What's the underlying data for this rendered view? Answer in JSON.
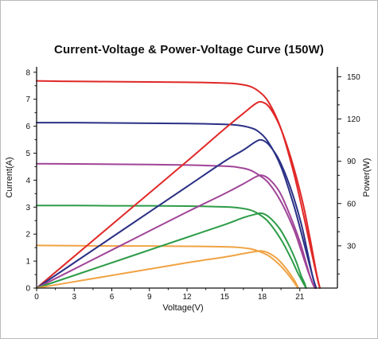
{
  "chart_data": {
    "type": "line",
    "title": "Current-Voltage & Power-Voltage Curve (150W)",
    "xlabel": "Voltage(V)",
    "ylabel": "Current(A)",
    "y2label": "Power(W)",
    "xlim": [
      0,
      24
    ],
    "ylim": [
      0,
      8.2
    ],
    "y2lim": [
      0,
      157
    ],
    "xticks": [
      0,
      3,
      6,
      9,
      12,
      15,
      18,
      21
    ],
    "yticks": [
      0,
      1,
      2,
      3,
      4,
      5,
      6,
      7,
      8
    ],
    "y2ticks": [
      30,
      60,
      90,
      120,
      150
    ],
    "grid": false,
    "colors": {
      "red": "#e02827",
      "navy": "#2b3185",
      "purple": "#a04497",
      "green": "#2d9c48",
      "orange": "#f0a344"
    },
    "iv_curves": [
      {
        "color": "red",
        "x": [
          0,
          3,
          6,
          9,
          12,
          15,
          16,
          17,
          17.7,
          18.5,
          19.5,
          20.5,
          21.3,
          21.9,
          22.4,
          22.6
        ],
        "y": [
          7.68,
          7.66,
          7.65,
          7.64,
          7.63,
          7.6,
          7.57,
          7.48,
          7.3,
          6.9,
          5.9,
          4.3,
          2.7,
          1.4,
          0.35,
          0
        ]
      },
      {
        "color": "navy",
        "x": [
          0,
          3,
          6,
          9,
          12,
          15,
          16,
          17,
          17.7,
          18.5,
          19.5,
          20.5,
          21.2,
          21.7,
          22.1,
          22.3
        ],
        "y": [
          6.13,
          6.13,
          6.12,
          6.11,
          6.1,
          6.07,
          6.04,
          5.95,
          5.8,
          5.4,
          4.5,
          3.1,
          1.9,
          1.0,
          0.3,
          0
        ]
      },
      {
        "color": "purple",
        "x": [
          0,
          3,
          6,
          9,
          12,
          15,
          16,
          17,
          17.7,
          18.5,
          19.5,
          20.5,
          21.1,
          21.6,
          22.0,
          22.2
        ],
        "y": [
          4.61,
          4.6,
          4.59,
          4.58,
          4.56,
          4.52,
          4.48,
          4.38,
          4.2,
          3.9,
          3.2,
          2.2,
          1.4,
          0.7,
          0.2,
          0
        ]
      },
      {
        "color": "green",
        "x": [
          0,
          3,
          6,
          9,
          12,
          15,
          16,
          17,
          17.7,
          18.5,
          19.5,
          20.3,
          20.8,
          21.2,
          21.5
        ],
        "y": [
          3.06,
          3.06,
          3.05,
          3.05,
          3.04,
          3.01,
          2.98,
          2.9,
          2.75,
          2.45,
          1.8,
          1.1,
          0.6,
          0.25,
          0
        ]
      },
      {
        "color": "orange",
        "x": [
          0,
          3,
          6,
          9,
          12,
          15,
          16,
          17,
          17.7,
          18.5,
          19.3,
          19.9,
          20.4,
          20.7,
          20.85
        ],
        "y": [
          1.58,
          1.57,
          1.56,
          1.56,
          1.55,
          1.53,
          1.51,
          1.46,
          1.37,
          1.2,
          0.9,
          0.6,
          0.3,
          0.1,
          0
        ]
      }
    ],
    "pv_curves": [
      {
        "color": "red",
        "x": [
          0,
          4,
          8,
          12,
          15,
          16.5,
          17.5,
          18,
          18.6,
          19.4,
          20.3,
          21.2,
          21.8,
          22.3,
          22.6
        ],
        "y": [
          0,
          30,
          60,
          90,
          113,
          124,
          131,
          132,
          128,
          115,
          92,
          62,
          36,
          12,
          0
        ]
      },
      {
        "color": "navy",
        "x": [
          0,
          4,
          8,
          12,
          15,
          16.5,
          17.5,
          18,
          18.6,
          19.4,
          20.3,
          21.1,
          21.6,
          22.0,
          22.3
        ],
        "y": [
          0,
          24,
          48,
          72,
          90,
          98,
          104,
          105,
          101,
          90,
          70,
          46,
          26,
          9,
          0
        ]
      },
      {
        "color": "purple",
        "x": [
          0,
          4,
          8,
          12,
          15,
          16.5,
          17.5,
          18,
          18.6,
          19.4,
          20.2,
          21.0,
          21.5,
          21.9,
          22.2
        ],
        "y": [
          0,
          18,
          36,
          54,
          67,
          74,
          79,
          80,
          77,
          68,
          52,
          33,
          18,
          6,
          0
        ]
      },
      {
        "color": "green",
        "x": [
          0,
          4,
          8,
          12,
          15,
          16.5,
          17.5,
          18,
          18.6,
          19.4,
          20.1,
          20.7,
          21.1,
          21.4,
          21.5
        ],
        "y": [
          0,
          12,
          24,
          36,
          45,
          50,
          52.5,
          53,
          50,
          42,
          31,
          19,
          9,
          3,
          0
        ]
      },
      {
        "color": "orange",
        "x": [
          0,
          4,
          8,
          12,
          15,
          16.5,
          17.5,
          18,
          18.6,
          19.3,
          19.9,
          20.3,
          20.6,
          20.8,
          20.85
        ],
        "y": [
          0,
          6,
          12,
          18,
          22,
          24.5,
          26,
          26.3,
          24.5,
          20,
          14,
          9,
          5,
          1.5,
          0
        ]
      }
    ]
  }
}
